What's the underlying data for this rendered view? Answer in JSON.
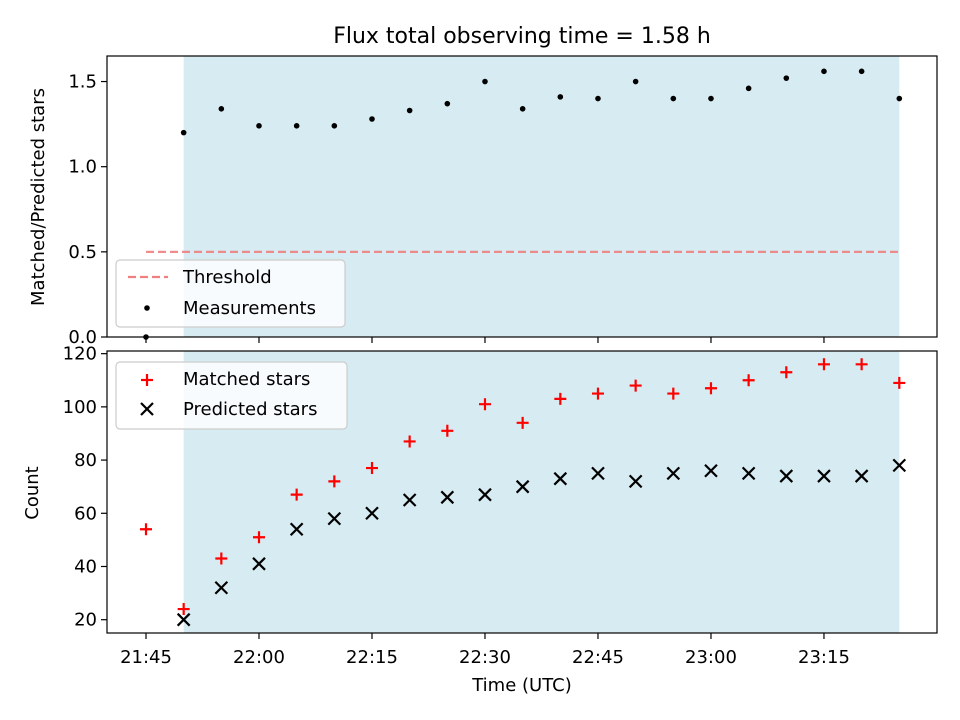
{
  "chart_data": [
    {
      "type": "scatter",
      "title": "Flux total observing time = 1.58 h",
      "xlabel": "",
      "ylabel": "Matched/Predicted stars",
      "ylim": [
        0,
        1.65
      ],
      "yticks": [
        "0.0",
        "0.5",
        "1.0",
        "1.5"
      ],
      "ytick_values": [
        0,
        0.5,
        1.0,
        1.5
      ],
      "shaded_span": [
        "21:50",
        "23:25"
      ],
      "series": [
        {
          "name": "Threshold",
          "kind": "dashed-line",
          "x": [
            "21:45",
            "23:25"
          ],
          "values": [
            0.5,
            0.5
          ],
          "color": "#f08080"
        },
        {
          "name": "Measurements",
          "kind": "dot",
          "x": [
            "21:45",
            "21:50",
            "21:55",
            "22:00",
            "22:05",
            "22:10",
            "22:15",
            "22:20",
            "22:25",
            "22:30",
            "22:35",
            "22:40",
            "22:45",
            "22:50",
            "22:55",
            "23:00",
            "23:05",
            "23:10",
            "23:15",
            "23:20",
            "23:25"
          ],
          "values": [
            0.0,
            1.2,
            1.34,
            1.24,
            1.24,
            1.24,
            1.28,
            1.33,
            1.37,
            1.5,
            1.34,
            1.41,
            1.4,
            1.5,
            1.4,
            1.4,
            1.46,
            1.52,
            1.56,
            1.56,
            1.4
          ],
          "color": "#000000"
        }
      ],
      "legend": "lower-left"
    },
    {
      "type": "scatter",
      "xlabel": "Time (UTC)",
      "ylabel": "Count",
      "ylim": [
        15,
        121
      ],
      "yticks": [
        "20",
        "40",
        "60",
        "80",
        "100",
        "120"
      ],
      "ytick_values": [
        20,
        40,
        60,
        80,
        100,
        120
      ],
      "xticks": [
        "21:45",
        "22:00",
        "22:15",
        "22:30",
        "22:45",
        "23:00",
        "23:15"
      ],
      "shaded_span": [
        "21:50",
        "23:25"
      ],
      "series": [
        {
          "name": "Matched stars",
          "marker": "+",
          "color": "#ff0000",
          "x": [
            "21:45",
            "21:50",
            "21:55",
            "22:00",
            "22:05",
            "22:10",
            "22:15",
            "22:20",
            "22:25",
            "22:30",
            "22:35",
            "22:40",
            "22:45",
            "22:50",
            "22:55",
            "23:00",
            "23:05",
            "23:10",
            "23:15",
            "23:20",
            "23:25"
          ],
          "values": [
            54,
            24,
            43,
            51,
            67,
            72,
            77,
            87,
            91,
            101,
            94,
            103,
            105,
            108,
            105,
            107,
            110,
            113,
            116,
            116,
            109
          ]
        },
        {
          "name": "Predicted stars",
          "marker": "x",
          "color": "#000000",
          "x": [
            "21:50",
            "21:55",
            "22:00",
            "22:05",
            "22:10",
            "22:15",
            "22:20",
            "22:25",
            "22:30",
            "22:35",
            "22:40",
            "22:45",
            "22:50",
            "22:55",
            "23:00",
            "23:05",
            "23:10",
            "23:15",
            "23:20",
            "23:25"
          ],
          "values": [
            20,
            32,
            41,
            54,
            58,
            60,
            65,
            66,
            67,
            70,
            73,
            75,
            72,
            75,
            76,
            75,
            74,
            74,
            74,
            78
          ]
        }
      ],
      "legend": "upper-left"
    }
  ]
}
